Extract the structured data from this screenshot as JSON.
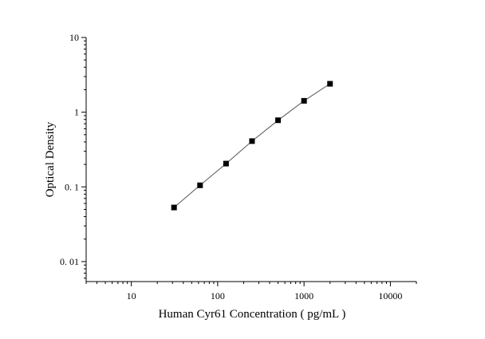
{
  "chart_data": {
    "type": "line",
    "title": "",
    "xlabel": "Human Cyr61 Concentration ( pg/mL )",
    "ylabel": "Optical Density",
    "xscale": "log",
    "yscale": "log",
    "xlim": [
      3,
      20000
    ],
    "ylim": [
      0.0054,
      10
    ],
    "xticks": [
      10,
      100,
      1000,
      10000
    ],
    "xtick_labels": [
      "10",
      "100",
      "1000",
      "10000"
    ],
    "yticks": [
      0.01,
      0.1,
      1,
      10
    ],
    "ytick_labels": [
      "0. 01",
      "0. 1",
      "1",
      "10"
    ],
    "grid": false,
    "legend": "none",
    "marker": "square",
    "series": [
      {
        "x": [
          31.25,
          62.5,
          125,
          250,
          500,
          1000,
          2000
        ],
        "y": [
          0.053,
          0.105,
          0.205,
          0.41,
          0.78,
          1.42,
          2.4
        ]
      }
    ],
    "colors": {
      "line": "#555555",
      "marker": "#000000",
      "axis": "#000000"
    }
  }
}
